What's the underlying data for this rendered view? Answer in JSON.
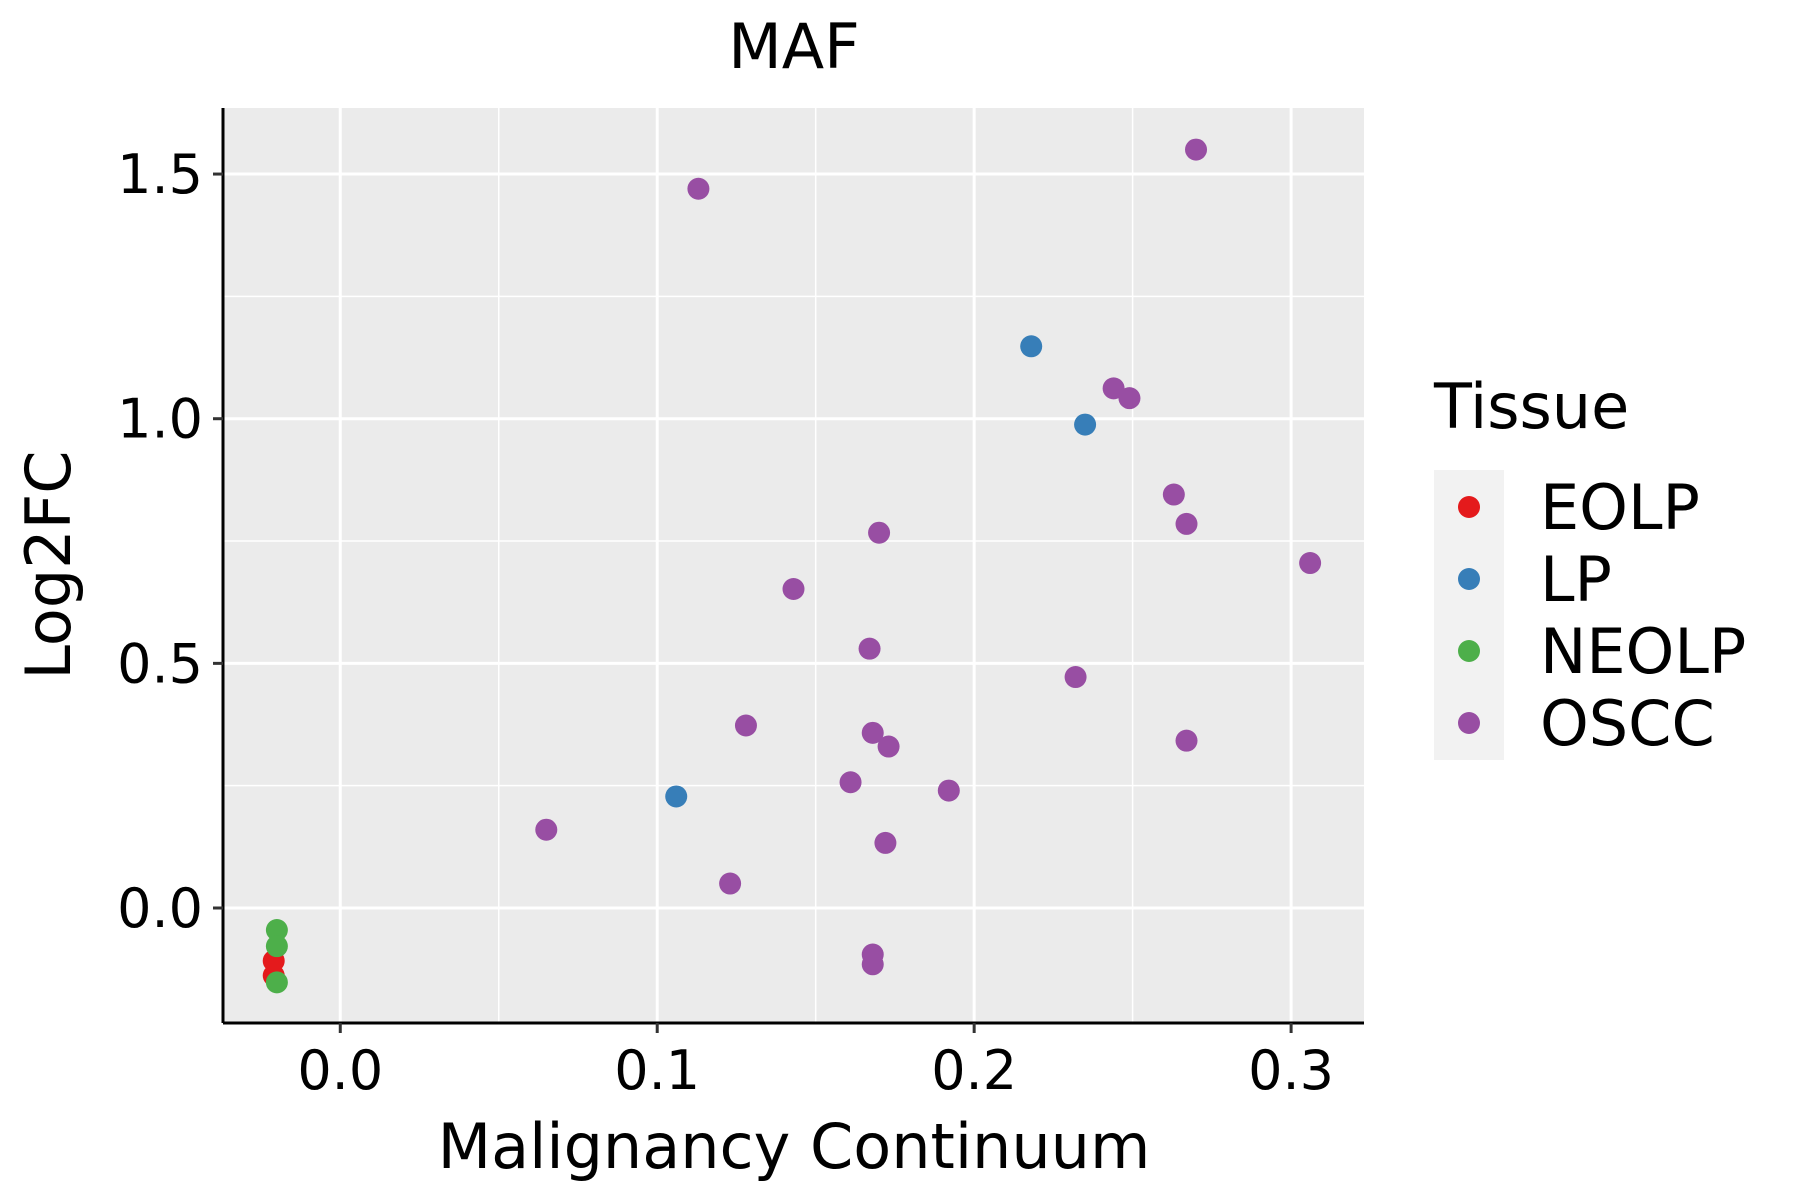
{
  "chart_data": {
    "type": "scatter",
    "title": "MAF",
    "xlabel": "Malignancy Continuum",
    "ylabel": "Log2FC",
    "xlim": [
      -0.037,
      0.323
    ],
    "ylim": [
      -0.235,
      1.635
    ],
    "x_ticks": [
      0.0,
      0.1,
      0.2,
      0.3
    ],
    "x_tick_labels": [
      "0.0",
      "0.1",
      "0.2",
      "0.3"
    ],
    "y_ticks": [
      0.0,
      0.5,
      1.0,
      1.5
    ],
    "y_tick_labels": [
      "0.0",
      "0.5",
      "1.0",
      "1.5"
    ],
    "grid": true,
    "legend": {
      "title": "Tissue",
      "position": "right",
      "entries": [
        "EOLP",
        "LP",
        "NEOLP",
        "OSCC"
      ]
    },
    "colors": {
      "EOLP": "#E41A1C",
      "LP": "#377EB8",
      "NEOLP": "#4DAF4A",
      "OSCC": "#984EA3"
    },
    "series": [
      {
        "name": "EOLP",
        "points": [
          {
            "x": -0.021,
            "y": -0.108
          },
          {
            "x": -0.021,
            "y": -0.138
          }
        ]
      },
      {
        "name": "LP",
        "points": [
          {
            "x": 0.106,
            "y": 0.228
          },
          {
            "x": 0.218,
            "y": 1.148
          },
          {
            "x": 0.235,
            "y": 0.988
          }
        ]
      },
      {
        "name": "NEOLP",
        "points": [
          {
            "x": -0.02,
            "y": -0.045
          },
          {
            "x": -0.02,
            "y": -0.078
          },
          {
            "x": -0.02,
            "y": -0.152
          }
        ]
      },
      {
        "name": "OSCC",
        "points": [
          {
            "x": 0.27,
            "y": 1.55
          },
          {
            "x": 0.113,
            "y": 1.47
          },
          {
            "x": 0.244,
            "y": 1.062
          },
          {
            "x": 0.249,
            "y": 1.042
          },
          {
            "x": 0.263,
            "y": 0.845
          },
          {
            "x": 0.267,
            "y": 0.785
          },
          {
            "x": 0.306,
            "y": 0.705
          },
          {
            "x": 0.17,
            "y": 0.767
          },
          {
            "x": 0.143,
            "y": 0.652
          },
          {
            "x": 0.167,
            "y": 0.53
          },
          {
            "x": 0.232,
            "y": 0.472
          },
          {
            "x": 0.128,
            "y": 0.373
          },
          {
            "x": 0.168,
            "y": 0.358
          },
          {
            "x": 0.173,
            "y": 0.33
          },
          {
            "x": 0.267,
            "y": 0.342
          },
          {
            "x": 0.161,
            "y": 0.257
          },
          {
            "x": 0.192,
            "y": 0.24
          },
          {
            "x": 0.065,
            "y": 0.16
          },
          {
            "x": 0.172,
            "y": 0.133
          },
          {
            "x": 0.123,
            "y": 0.05
          },
          {
            "x": 0.168,
            "y": -0.095
          },
          {
            "x": 0.168,
            "y": -0.115
          }
        ]
      }
    ]
  }
}
